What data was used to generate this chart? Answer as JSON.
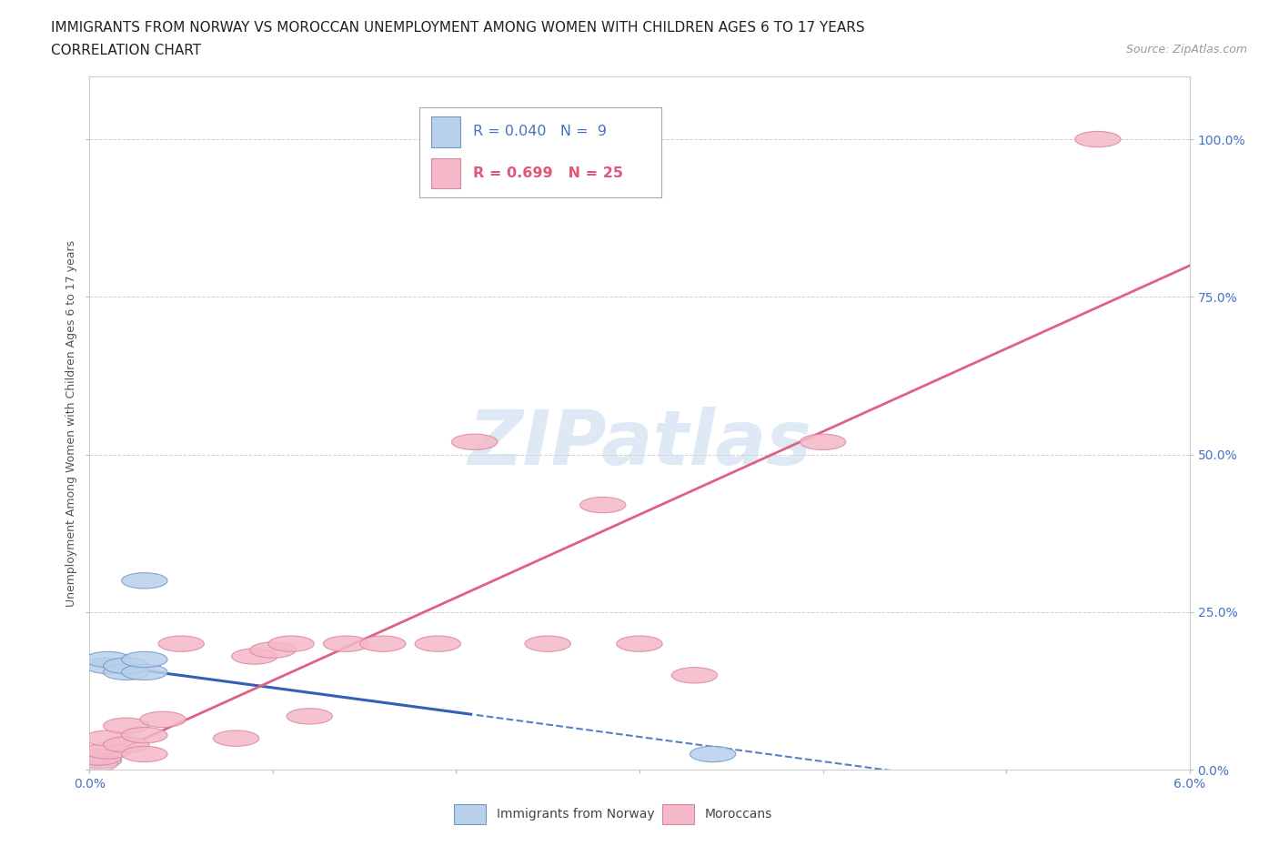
{
  "title_line1": "IMMIGRANTS FROM NORWAY VS MOROCCAN UNEMPLOYMENT AMONG WOMEN WITH CHILDREN AGES 6 TO 17 YEARS",
  "title_line2": "CORRELATION CHART",
  "source_text": "Source: ZipAtlas.com",
  "ylabel": "Unemployment Among Women with Children Ages 6 to 17 years",
  "xlim": [
    0.0,
    0.06
  ],
  "ylim": [
    0.0,
    1.1
  ],
  "xticks": [
    0.0,
    0.01,
    0.02,
    0.03,
    0.04,
    0.05,
    0.06
  ],
  "xtick_labels": [
    "0.0%",
    "",
    "",
    "",
    "",
    "",
    "6.0%"
  ],
  "yticks": [
    0.0,
    0.25,
    0.5,
    0.75,
    1.0
  ],
  "ytick_labels": [
    "0.0%",
    "25.0%",
    "50.0%",
    "75.0%",
    "100.0%"
  ],
  "norway_color": "#b8d0ea",
  "morocco_color": "#f5b8c8",
  "norway_edge_color": "#7099c8",
  "morocco_edge_color": "#d888a0",
  "norway_line_color": "#3060b8",
  "morocco_line_color": "#e06080",
  "norway_R": 0.04,
  "norway_N": 9,
  "morocco_R": 0.699,
  "morocco_N": 25,
  "watermark_text": "ZIPatlas",
  "watermark_color": "#c5d8ed",
  "norway_x": [
    0.0005,
    0.001,
    0.001,
    0.002,
    0.002,
    0.003,
    0.003,
    0.003,
    0.034
  ],
  "norway_y": [
    0.015,
    0.165,
    0.175,
    0.155,
    0.165,
    0.155,
    0.175,
    0.3,
    0.025
  ],
  "morocco_x": [
    0.0003,
    0.0005,
    0.001,
    0.001,
    0.002,
    0.002,
    0.003,
    0.003,
    0.004,
    0.005,
    0.008,
    0.009,
    0.01,
    0.011,
    0.012,
    0.014,
    0.016,
    0.019,
    0.021,
    0.025,
    0.028,
    0.03,
    0.033,
    0.04,
    0.055
  ],
  "morocco_y": [
    0.01,
    0.02,
    0.03,
    0.05,
    0.04,
    0.07,
    0.025,
    0.055,
    0.08,
    0.2,
    0.05,
    0.18,
    0.19,
    0.2,
    0.085,
    0.2,
    0.2,
    0.2,
    0.52,
    0.2,
    0.42,
    0.2,
    0.15,
    0.52,
    1.0
  ],
  "background_color": "#ffffff",
  "grid_color": "#cccccc",
  "plot_bg": "#ffffff",
  "legend_norway_color": "#4472c4",
  "legend_morocco_color": "#e05878",
  "legend_norway_bold": false,
  "legend_morocco_bold": true
}
